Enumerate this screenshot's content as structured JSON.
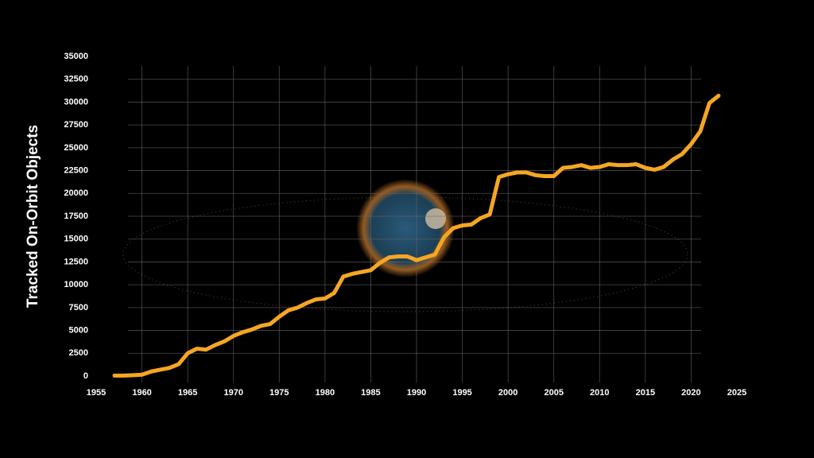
{
  "chart_data": {
    "type": "line",
    "y_label": "Tracked On-Orbit Objects",
    "x": [
      1957,
      1958,
      1959,
      1960,
      1961,
      1962,
      1963,
      1964,
      1965,
      1966,
      1967,
      1968,
      1969,
      1970,
      1971,
      1972,
      1973,
      1974,
      1975,
      1976,
      1977,
      1978,
      1979,
      1980,
      1981,
      1982,
      1983,
      1984,
      1985,
      1986,
      1987,
      1988,
      1989,
      1990,
      1991,
      1992,
      1993,
      1994,
      1995,
      1996,
      1997,
      1998,
      1999,
      2000,
      2001,
      2002,
      2003,
      2004,
      2005,
      2006,
      2007,
      2008,
      2009,
      2010,
      2011,
      2012,
      2013,
      2014,
      2015,
      2016,
      2017,
      2018,
      2019,
      2020,
      2021,
      2022,
      2023
    ],
    "series": [
      {
        "name": "Tracked On-Orbit Objects",
        "color": "#f5a623",
        "values": [
          50,
          50,
          100,
          150,
          500,
          700,
          900,
          1300,
          2500,
          3000,
          2900,
          3400,
          3800,
          4400,
          4800,
          5100,
          5500,
          5700,
          6500,
          7200,
          7500,
          8000,
          8400,
          8500,
          9100,
          10900,
          11200,
          11400,
          11600,
          12400,
          13000,
          13100,
          13100,
          12700,
          13000,
          13300,
          15200,
          16200,
          16500,
          16600,
          17300,
          17700,
          21800,
          22100,
          22300,
          22300,
          22000,
          21900,
          21900,
          22800,
          22900,
          23100,
          22800,
          22900,
          23200,
          23100,
          23100,
          23200,
          22800,
          22600,
          22900,
          23700,
          24300,
          25400,
          26800,
          29900,
          30700
        ]
      }
    ],
    "xlim": [
      1955,
      2025
    ],
    "xticks": [
      1955,
      1960,
      1965,
      1970,
      1975,
      1980,
      1985,
      1990,
      1995,
      2000,
      2005,
      2010,
      2015,
      2020,
      2025
    ],
    "ylim": [
      0,
      35000
    ],
    "yticks": [
      0,
      2500,
      5000,
      7500,
      10000,
      12500,
      15000,
      17500,
      20000,
      22500,
      25000,
      27500,
      30000,
      32500,
      35000
    ],
    "grid": true
  }
}
